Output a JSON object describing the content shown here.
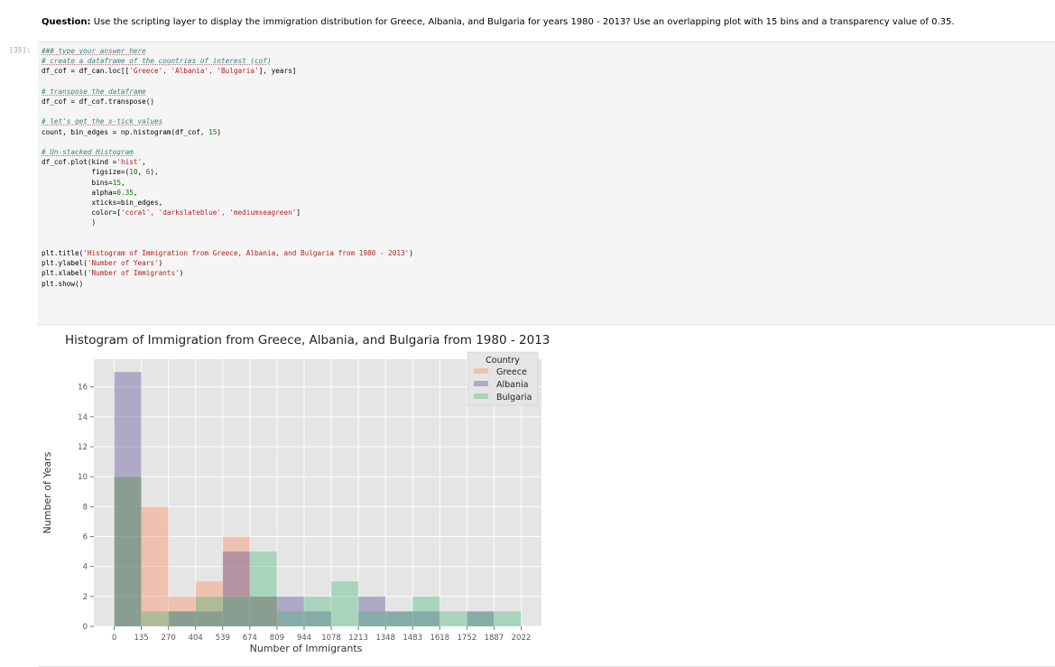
{
  "question": {
    "label": "Question:",
    "text": "Use the scripting layer to display the immigration distribution for Greece, Albania, and Bulgaria for years 1980 - 2013? Use an overlapping plot with 15 bins and a transparency value of 0.35."
  },
  "cell": {
    "prompt": "[35]:",
    "lines": {
      "l1": "### type your answer here",
      "l2": "# create a dataframe of the countries of interest (cof)",
      "l3a": "df_cof = df_can.loc[[",
      "l3b": "'Greece', 'Albania', 'Bulgaria'",
      "l3c": "], years]",
      "l4": "# transpose the dataframe",
      "l5": "df_cof = df_cof.transpose()",
      "l6": "# let's get the x-tick values",
      "l7a": "count, bin_edges = np.histogram(df_cof, ",
      "l7b": "15",
      "l7c": ")",
      "l8": "# Un-stacked Histogram",
      "l9a": "df_cof.plot(kind =",
      "l9b": "'hist'",
      "l9c": ",",
      "l10a": "            figsize=(",
      "l10b": "10",
      "l10c": ", ",
      "l10d": "6",
      "l10e": "),",
      "l11a": "            bins=",
      "l11b": "15",
      "l11c": ",",
      "l12a": "            alpha=",
      "l12b": "0.35",
      "l12c": ",",
      "l13": "            xticks=bin_edges,",
      "l14a": "            color=[",
      "l14b": "'coral', 'darkslateblue', 'mediumseagreen'",
      "l14c": "]",
      "l15": "            )",
      "l16a": "plt.title(",
      "l16b": "'Histogram of Immigration from Greece, Albania, and Bulgaria from 1980 - 2013'",
      "l16c": ")",
      "l17a": "plt.ylabel(",
      "l17b": "'Number of Years'",
      "l17c": ")",
      "l18a": "plt.xlabel(",
      "l18b": "'Number of Immigrants'",
      "l18c": ")",
      "l19": "plt.show()"
    }
  },
  "chart_data": {
    "type": "bar",
    "title": "Histogram of Immigration from Greece, Albania, and Bulgaria from 1980 - 2013",
    "xlabel": "Number of Immigrants",
    "ylabel": "Number of Years",
    "bin_edges": [
      0,
      134.8,
      269.6,
      404.4,
      539.2,
      674.0,
      808.8,
      943.6,
      1078.4,
      1213.2,
      1348.0,
      1482.8,
      1617.6,
      1752.4,
      1887.2,
      2022.0
    ],
    "xtick_labels": [
      "0",
      "135",
      "270",
      "404",
      "539",
      "674",
      "809",
      "944",
      "1078",
      "1213",
      "1348",
      "1483",
      "1618",
      "1752",
      "1887",
      "2022"
    ],
    "yticks": [
      0,
      2,
      4,
      6,
      8,
      10,
      12,
      14,
      16
    ],
    "ylim": [
      0,
      17.85
    ],
    "xlim": [
      -101.1,
      2123.1
    ],
    "alpha": 0.35,
    "grid": true,
    "legend": {
      "title": "Country",
      "placement": "top-right"
    },
    "series": [
      {
        "name": "Greece",
        "color": "#ff7f50",
        "values": [
          10,
          8,
          2,
          3,
          6,
          2,
          0,
          0,
          0,
          0,
          0,
          0,
          0,
          0,
          0
        ]
      },
      {
        "name": "Albania",
        "color": "#483d8b",
        "values": [
          17,
          0,
          1,
          1,
          5,
          2,
          2,
          1,
          0,
          2,
          1,
          1,
          0,
          1,
          0
        ]
      },
      {
        "name": "Bulgaria",
        "color": "#3cb371",
        "values": [
          10,
          1,
          1,
          2,
          2,
          5,
          1,
          2,
          3,
          1,
          1,
          2,
          1,
          1,
          1
        ]
      }
    ]
  }
}
